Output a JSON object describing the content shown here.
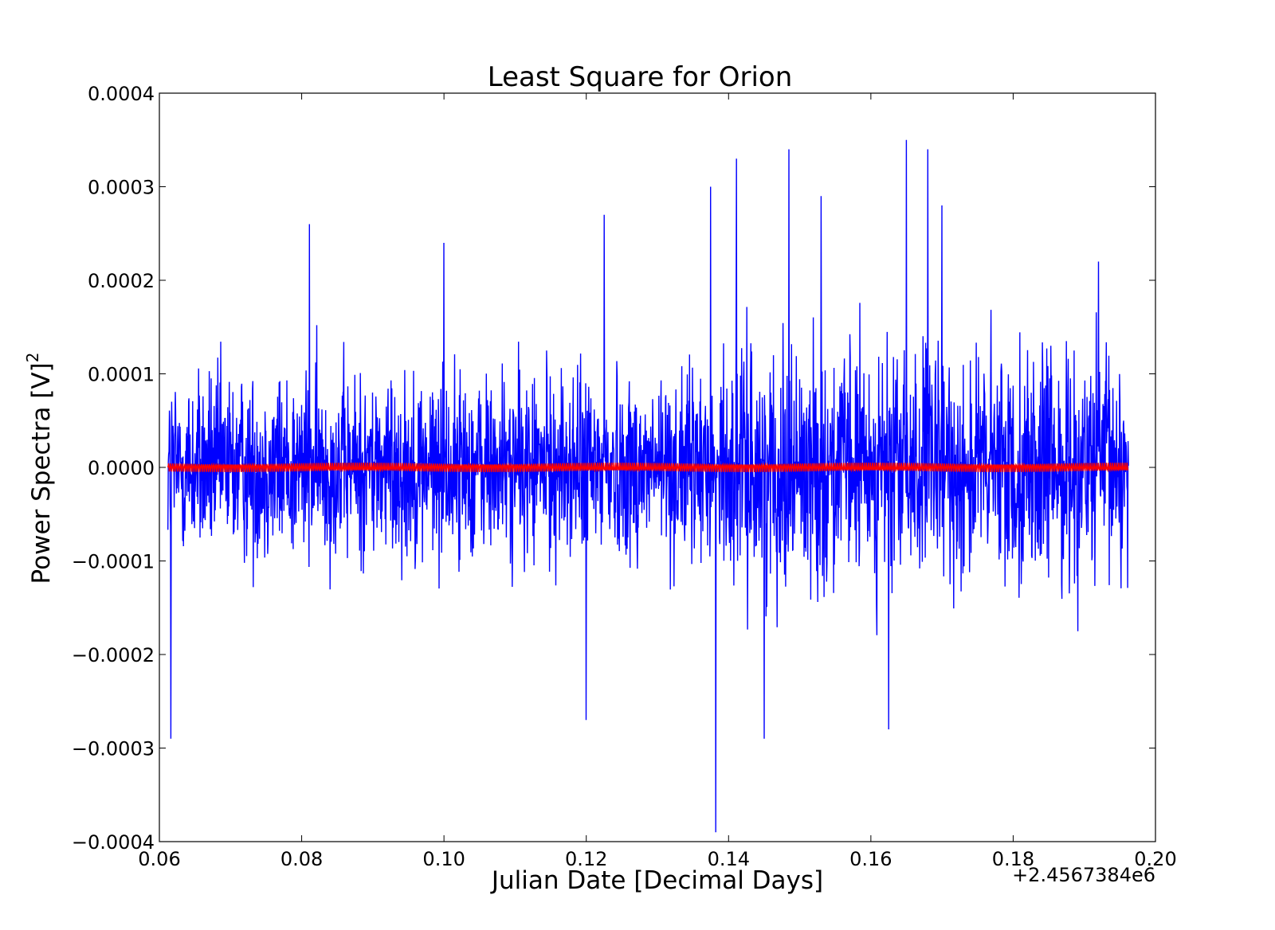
{
  "chart_data": {
    "type": "line",
    "title": "Least Square for Orion",
    "xlabel": "Julian Date [Decimal Days]",
    "ylabel": "Power Spectra [V]",
    "ylabel_superscript": "2",
    "x_offset_text": "+2.4567384e6",
    "xlim": [
      0.06,
      0.2
    ],
    "ylim": [
      -0.0004,
      0.0004
    ],
    "x_ticks": [
      0.06,
      0.08,
      0.1,
      0.12,
      0.14,
      0.16,
      0.18,
      0.2
    ],
    "x_tick_labels": [
      "0.06",
      "0.08",
      "0.10",
      "0.12",
      "0.14",
      "0.16",
      "0.18",
      "0.20"
    ],
    "y_ticks": [
      -0.0004,
      -0.0003,
      -0.0002,
      -0.0001,
      0.0,
      0.0001,
      0.0002,
      0.0003,
      0.0004
    ],
    "y_tick_labels": [
      "−0.0004",
      "−0.0003",
      "−0.0002",
      "−0.0001",
      "0.0000",
      "0.0001",
      "0.0002",
      "0.0003",
      "0.0004"
    ],
    "grid": false,
    "series": [
      {
        "color": "#0000ff",
        "x_range": [
          0.0612,
          0.1962
        ],
        "typical_amplitude": 0.0001,
        "peaks": [
          {
            "x": 0.0616,
            "y": -0.00029
          },
          {
            "x": 0.0811,
            "y": 0.00026
          },
          {
            "x": 0.1,
            "y": 0.00024
          },
          {
            "x": 0.1225,
            "y": 0.00027
          },
          {
            "x": 0.12,
            "y": -0.00027
          },
          {
            "x": 0.1375,
            "y": 0.0003
          },
          {
            "x": 0.1382,
            "y": -0.00039
          },
          {
            "x": 0.1411,
            "y": 0.00033
          },
          {
            "x": 0.1485,
            "y": 0.00034
          },
          {
            "x": 0.145,
            "y": -0.00029
          },
          {
            "x": 0.153,
            "y": 0.00029
          },
          {
            "x": 0.1625,
            "y": -0.00028
          },
          {
            "x": 0.165,
            "y": 0.00035
          },
          {
            "x": 0.168,
            "y": 0.00034
          },
          {
            "x": 0.17,
            "y": 0.00028
          },
          {
            "x": 0.192,
            "y": 0.00022
          }
        ]
      },
      {
        "color": "#ff0000",
        "x_range": [
          0.0612,
          0.1962
        ],
        "amplitude": 5e-06
      }
    ]
  }
}
